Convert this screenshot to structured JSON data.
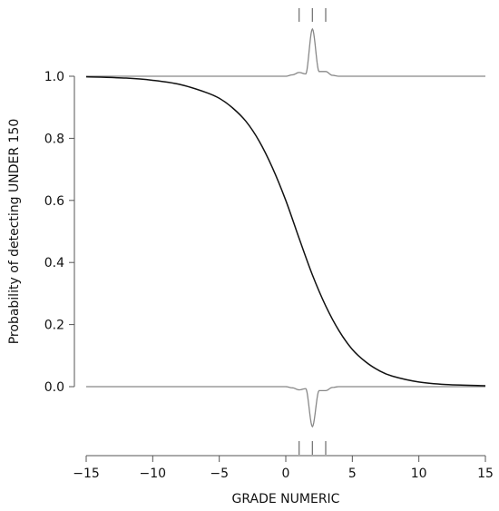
{
  "chart_data": {
    "type": "line",
    "xlabel": "GRADE NUMERIC",
    "ylabel": "Probability of detecting UNDER 150",
    "xlim": [
      -15,
      15
    ],
    "ylim": [
      0,
      1
    ],
    "x_ticks": [
      -15,
      -10,
      -5,
      0,
      5,
      10,
      15
    ],
    "x_tick_labels": [
      "−15",
      "−10",
      "−5",
      "0",
      "5",
      "10",
      "15"
    ],
    "y_ticks": [
      0.0,
      0.2,
      0.4,
      0.6,
      0.8,
      1.0
    ],
    "y_tick_labels": [
      "0.0",
      "0.2",
      "0.4",
      "0.6",
      "0.8",
      "1.0"
    ],
    "series": [
      {
        "x": [
          -15,
          -12,
          -10,
          -8,
          -6,
          -5,
          -4,
          -3,
          -2,
          -1,
          0,
          1,
          2,
          3,
          4,
          5,
          6,
          7,
          8,
          10,
          12,
          15
        ],
        "y": [
          0.998,
          0.994,
          0.987,
          0.974,
          0.948,
          0.929,
          0.898,
          0.855,
          0.791,
          0.705,
          0.6,
          0.478,
          0.36,
          0.26,
          0.18,
          0.12,
          0.08,
          0.052,
          0.034,
          0.015,
          0.007,
          0.003
        ]
      }
    ],
    "rug_x": [
      1,
      2,
      3
    ],
    "density": {
      "x": [
        0,
        0.5,
        1,
        1.5,
        2,
        2.5,
        3,
        3.5,
        4
      ],
      "relative_height": [
        0,
        0.03,
        0.08,
        0.05,
        1.0,
        0.1,
        0.1,
        0.02,
        0
      ]
    },
    "grid": false,
    "legend": "none"
  }
}
